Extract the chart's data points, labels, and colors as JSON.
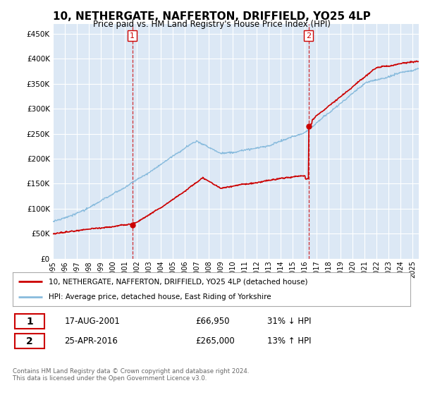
{
  "title": "10, NETHERGATE, NAFFERTON, DRIFFIELD, YO25 4LP",
  "subtitle": "Price paid vs. HM Land Registry's House Price Index (HPI)",
  "legend_line1": "10, NETHERGATE, NAFFERTON, DRIFFIELD, YO25 4LP (detached house)",
  "legend_line2": "HPI: Average price, detached house, East Riding of Yorkshire",
  "footer1": "Contains HM Land Registry data © Crown copyright and database right 2024.",
  "footer2": "This data is licensed under the Open Government Licence v3.0.",
  "sale1_date": "17-AUG-2001",
  "sale1_price": "£66,950",
  "sale1_hpi": "31% ↓ HPI",
  "sale2_date": "25-APR-2016",
  "sale2_price": "£265,000",
  "sale2_hpi": "13% ↑ HPI",
  "sale1_year": 2001.62,
  "sale1_value": 66950,
  "sale2_year": 2016.32,
  "sale2_value": 265000,
  "price_color": "#cc0000",
  "hpi_color": "#88bbdd",
  "background_color": "#ffffff",
  "plot_bg_color": "#dce8f5",
  "grid_color": "#ffffff",
  "ylim_min": 0,
  "ylim_max": 470000,
  "xlim_min": 1995,
  "xlim_max": 2025.5,
  "yticks": [
    0,
    50000,
    100000,
    150000,
    200000,
    250000,
    300000,
    350000,
    400000,
    450000
  ],
  "xticks": [
    1995,
    1996,
    1997,
    1998,
    1999,
    2000,
    2001,
    2002,
    2003,
    2004,
    2005,
    2006,
    2007,
    2008,
    2009,
    2010,
    2011,
    2012,
    2013,
    2014,
    2015,
    2016,
    2017,
    2018,
    2019,
    2020,
    2021,
    2022,
    2023,
    2024,
    2025
  ]
}
